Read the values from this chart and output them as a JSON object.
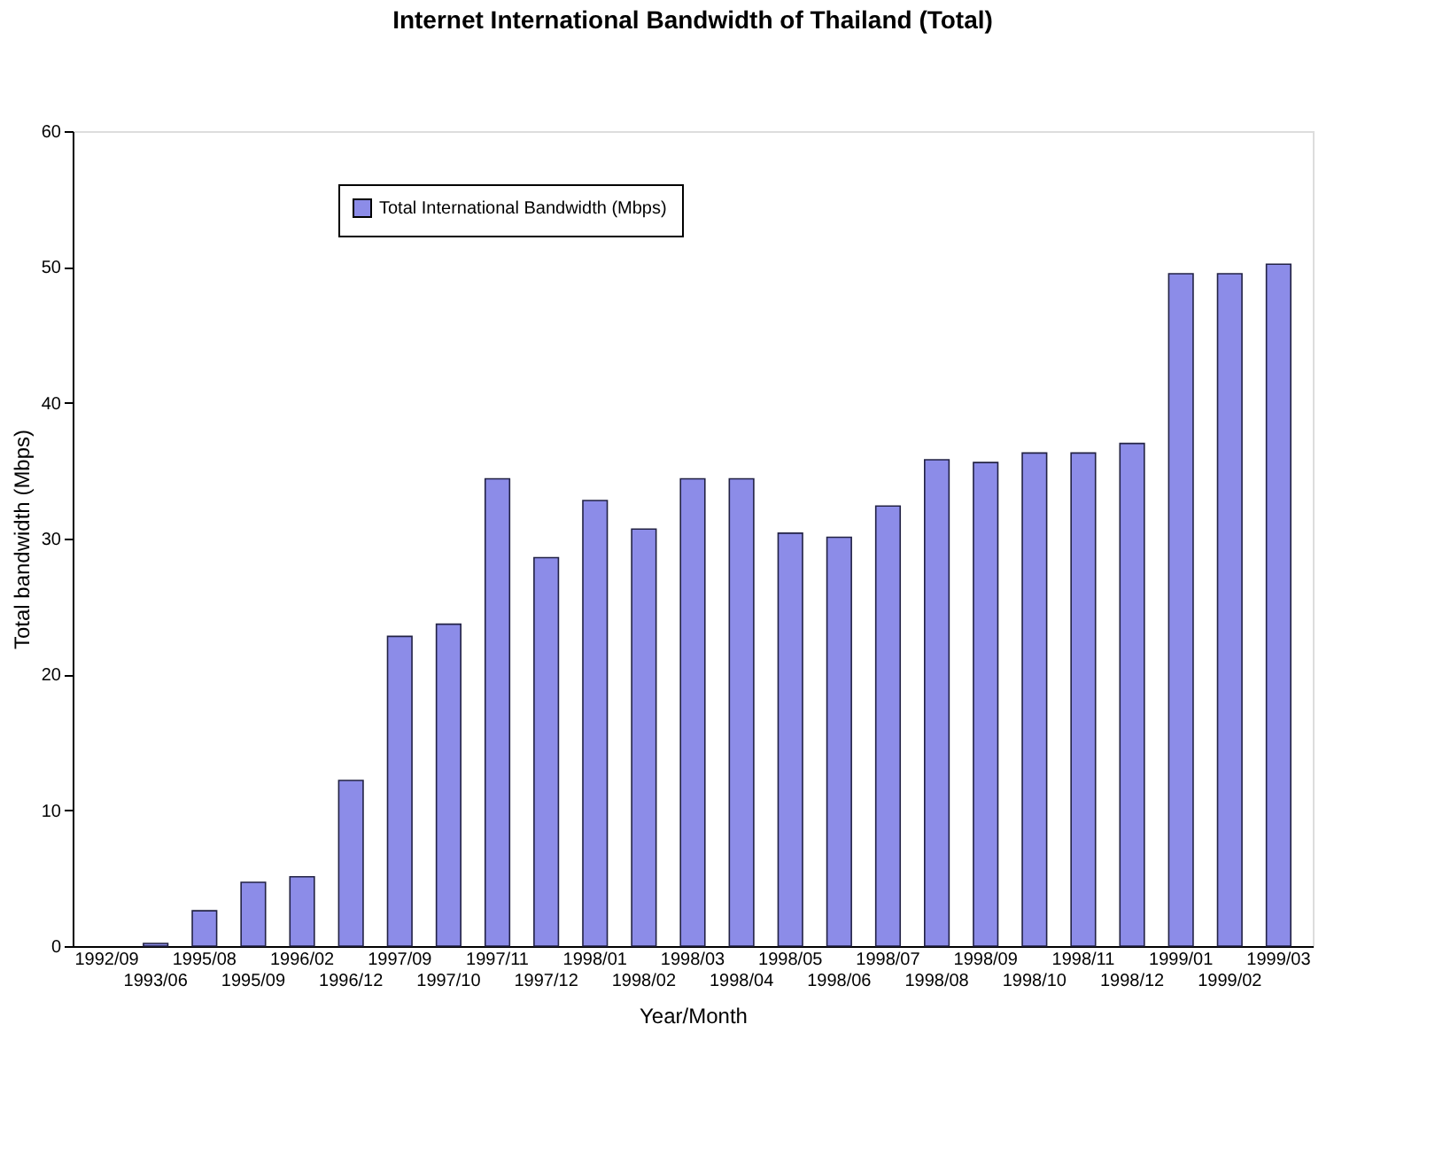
{
  "chart_data": {
    "type": "bar",
    "title": "Internet International Bandwidth of Thailand (Total)",
    "xlabel": "Year/Month",
    "ylabel": "Total bandwidth (Mbps)",
    "categories": [
      "1992/09",
      "1993/06",
      "1995/08",
      "1995/09",
      "1996/02",
      "1996/12",
      "1997/09",
      "1997/10",
      "1997/11",
      "1997/12",
      "1998/01",
      "1998/02",
      "1998/03",
      "1998/04",
      "1998/05",
      "1998/06",
      "1998/07",
      "1998/08",
      "1998/09",
      "1998/10",
      "1998/11",
      "1998/12",
      "1999/01",
      "1999/02",
      "1999/03"
    ],
    "series": [
      {
        "name": "Total International Bandwidth (Mbps)",
        "color": "#8c8ce8",
        "values": [
          null,
          0.2,
          2.6,
          4.7,
          5.1,
          12.2,
          22.8,
          23.7,
          34.4,
          28.6,
          32.8,
          30.7,
          34.4,
          34.4,
          30.4,
          30.1,
          32.4,
          35.8,
          35.6,
          36.3,
          36.3,
          37.0,
          49.5,
          49.5,
          50.2
        ]
      }
    ],
    "ylim": [
      0,
      60
    ],
    "yticks": [
      0,
      10,
      20,
      30,
      40,
      50,
      60
    ],
    "grid": false,
    "legend": "top left"
  }
}
